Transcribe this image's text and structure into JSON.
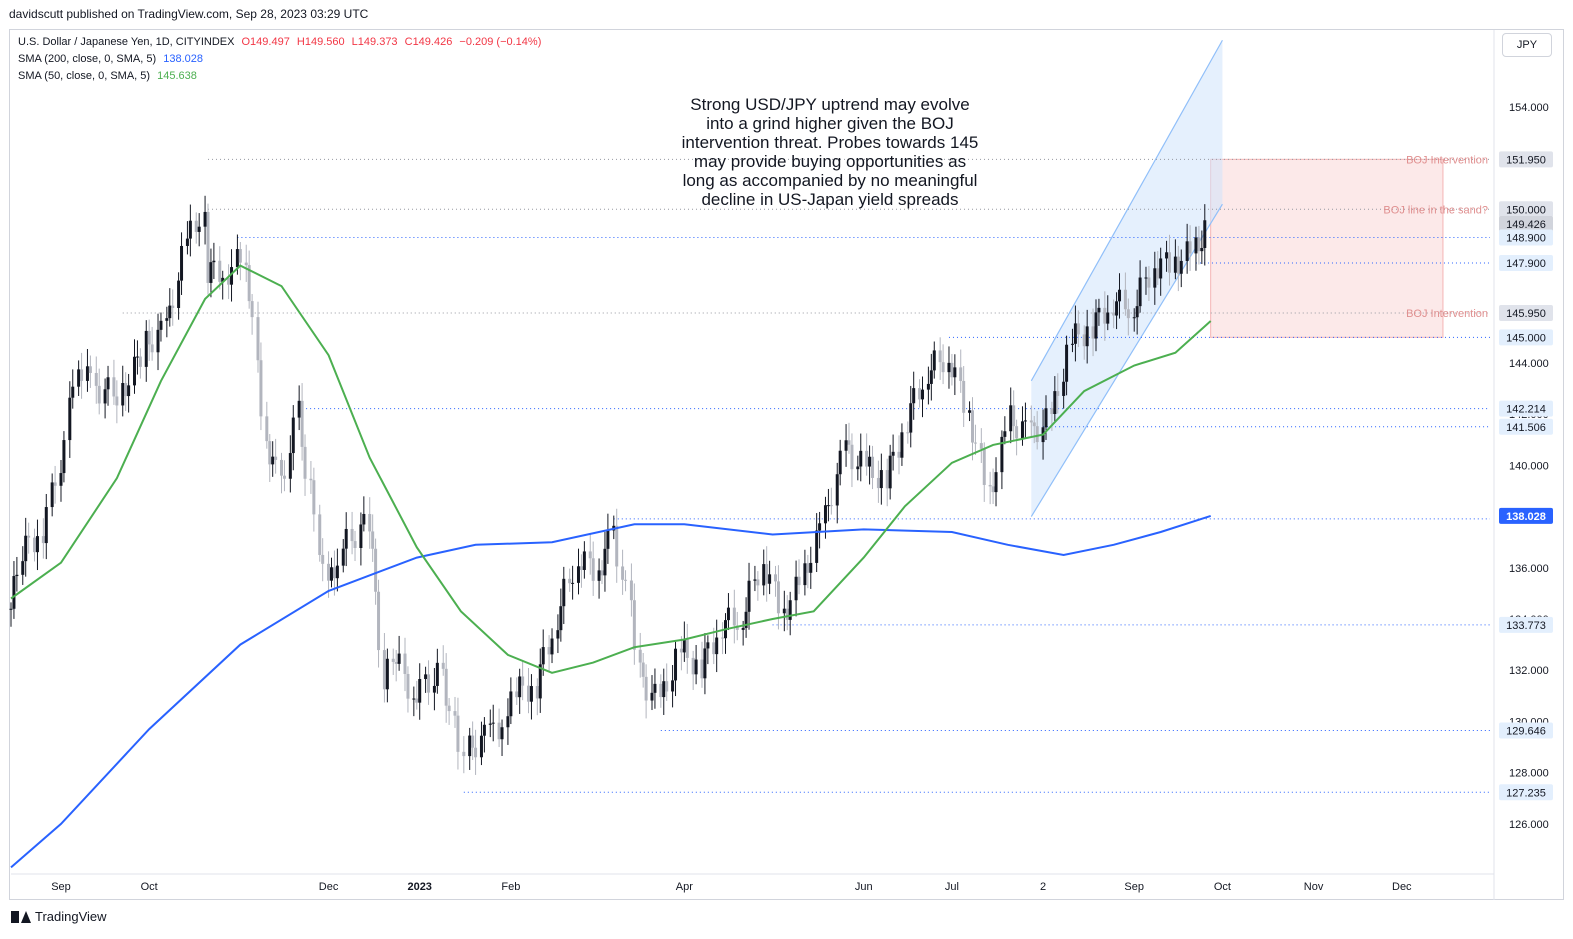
{
  "header": {
    "published": "davidscutt published on TradingView.com, Sep 28, 2023 03:29 UTC"
  },
  "legend": {
    "symbol": "U.S. Dollar / Japanese Yen, 1D, CITYINDEX",
    "open": "O149.497",
    "high": "H149.560",
    "low": "L149.373",
    "close": "C149.426",
    "change": "−0.209 (−0.14%)",
    "sma200_label": "SMA (200, close, 0, SMA, 5)",
    "sma200_value": "138.028",
    "sma50_label": "SMA (50, close, 0, SMA, 5)",
    "sma50_value": "145.638"
  },
  "currency_button": "JPY",
  "annotation": {
    "lines": [
      "Strong USD/JPY uptrend may evolve",
      "into a grind higher given the BOJ",
      "intervention threat. Probes towards 145",
      "may provide buying opportunities as",
      "long as accompanied by no meaningful",
      "decline in US-Japan yield spreads"
    ]
  },
  "footer": {
    "brand": "TradingView"
  },
  "colors": {
    "up": "#131722",
    "down": "#b2b5be",
    "sma200": "#2962ff",
    "sma50": "#4caf50",
    "level_line": "#2962ff",
    "channel": "#90bff9",
    "boj_zone": "#fbe0e0"
  },
  "chart_data": {
    "type": "candlestick",
    "title": "U.S. Dollar / Japanese Yen, 1D, CITYINDEX",
    "ylim": [
      124.2,
      157.0
    ],
    "xlim": [
      "2022-08-15",
      "2023-12-31"
    ],
    "y_ticks": [
      126,
      128,
      130,
      132,
      134,
      136,
      138,
      140,
      142,
      144,
      146,
      148,
      150,
      152,
      154
    ],
    "y_tick_labels": [
      "126.000",
      "128.000",
      "130.000",
      "132.000",
      "134.000",
      "136.000",
      "138.000",
      "140.000",
      "142.000",
      "144.000",
      "",
      "",
      "",
      "",
      "154.000"
    ],
    "x_ticks": [
      {
        "date": "2022-09-01",
        "label": "Sep"
      },
      {
        "date": "2022-10-01",
        "label": "Oct"
      },
      {
        "date": "2022-12-01",
        "label": "Dec"
      },
      {
        "date": "2023-01-01",
        "label": "2023",
        "bold": true
      },
      {
        "date": "2023-02-01",
        "label": "Feb"
      },
      {
        "date": "2023-04-01",
        "label": "Apr"
      },
      {
        "date": "2023-06-01",
        "label": "Jun"
      },
      {
        "date": "2023-07-01",
        "label": "Jul"
      },
      {
        "date": "2023-08-01",
        "label": "2"
      },
      {
        "date": "2023-09-01",
        "label": "Sep"
      },
      {
        "date": "2023-10-01",
        "label": "Oct"
      },
      {
        "date": "2023-11-01",
        "label": "Nov"
      },
      {
        "date": "2023-12-01",
        "label": "Dec"
      }
    ],
    "close_series": [
      [
        "2022-08-15",
        134.4
      ],
      [
        "2022-08-19",
        136.6
      ],
      [
        "2022-08-26",
        137.5
      ],
      [
        "2022-09-01",
        140.2
      ],
      [
        "2022-09-07",
        144.0
      ],
      [
        "2022-09-13",
        143.0
      ],
      [
        "2022-09-22",
        142.8
      ],
      [
        "2022-09-30",
        144.7
      ],
      [
        "2022-10-07",
        145.3
      ],
      [
        "2022-10-14",
        148.7
      ],
      [
        "2022-10-20",
        150.1
      ],
      [
        "2022-10-21",
        147.6
      ],
      [
        "2022-10-28",
        147.6
      ],
      [
        "2022-11-03",
        148.2
      ],
      [
        "2022-11-10",
        141.0
      ],
      [
        "2022-11-15",
        139.3
      ],
      [
        "2022-11-21",
        142.0
      ],
      [
        "2022-11-25",
        138.9
      ],
      [
        "2022-12-01",
        135.2
      ],
      [
        "2022-12-06",
        136.8
      ],
      [
        "2022-12-15",
        137.8
      ],
      [
        "2022-12-20",
        131.8
      ],
      [
        "2022-12-23",
        132.8
      ],
      [
        "2022-12-30",
        131.1
      ],
      [
        "2023-01-09",
        131.9
      ],
      [
        "2023-01-16",
        128.2
      ],
      [
        "2023-01-18",
        128.9
      ],
      [
        "2023-01-25",
        129.5
      ],
      [
        "2023-01-31",
        130.1
      ],
      [
        "2023-02-03",
        131.2
      ],
      [
        "2023-02-10",
        131.4
      ],
      [
        "2023-02-17",
        134.1
      ],
      [
        "2023-02-24",
        136.4
      ],
      [
        "2023-03-03",
        135.9
      ],
      [
        "2023-03-08",
        137.3
      ],
      [
        "2023-03-14",
        134.2
      ],
      [
        "2023-03-17",
        131.8
      ],
      [
        "2023-03-24",
        130.7
      ],
      [
        "2023-03-31",
        132.8
      ],
      [
        "2023-04-07",
        132.1
      ],
      [
        "2023-04-14",
        133.8
      ],
      [
        "2023-04-21",
        134.1
      ],
      [
        "2023-04-28",
        136.3
      ],
      [
        "2023-05-05",
        134.2
      ],
      [
        "2023-05-12",
        135.7
      ],
      [
        "2023-05-19",
        137.9
      ],
      [
        "2023-05-26",
        140.6
      ],
      [
        "2023-06-02",
        139.9
      ],
      [
        "2023-06-09",
        139.4
      ],
      [
        "2023-06-16",
        141.8
      ],
      [
        "2023-06-23",
        143.7
      ],
      [
        "2023-06-30",
        144.3
      ],
      [
        "2023-07-07",
        142.1
      ],
      [
        "2023-07-14",
        138.8
      ],
      [
        "2023-07-21",
        141.8
      ],
      [
        "2023-07-28",
        141.2
      ],
      [
        "2023-08-04",
        141.8
      ],
      [
        "2023-08-11",
        144.9
      ],
      [
        "2023-08-18",
        145.4
      ],
      [
        "2023-08-25",
        146.4
      ],
      [
        "2023-09-01",
        146.2
      ],
      [
        "2023-09-08",
        147.8
      ],
      [
        "2023-09-15",
        147.9
      ],
      [
        "2023-09-22",
        148.4
      ],
      [
        "2023-09-27",
        149.426
      ]
    ],
    "sma50": [
      [
        "2022-08-15",
        134.8
      ],
      [
        "2022-09-01",
        136.2
      ],
      [
        "2022-09-20",
        139.5
      ],
      [
        "2022-10-05",
        143.3
      ],
      [
        "2022-10-20",
        146.5
      ],
      [
        "2022-11-01",
        147.8
      ],
      [
        "2022-11-15",
        147.0
      ],
      [
        "2022-12-01",
        144.3
      ],
      [
        "2022-12-15",
        140.3
      ],
      [
        "2022-12-31",
        136.8
      ],
      [
        "2023-01-15",
        134.3
      ],
      [
        "2023-01-31",
        132.6
      ],
      [
        "2023-02-15",
        131.9
      ],
      [
        "2023-03-01",
        132.3
      ],
      [
        "2023-03-15",
        132.9
      ],
      [
        "2023-04-01",
        133.2
      ],
      [
        "2023-04-15",
        133.6
      ],
      [
        "2023-05-01",
        134.0
      ],
      [
        "2023-05-15",
        134.3
      ],
      [
        "2023-06-01",
        136.4
      ],
      [
        "2023-06-15",
        138.4
      ],
      [
        "2023-07-01",
        140.1
      ],
      [
        "2023-07-15",
        140.8
      ],
      [
        "2023-08-01",
        141.2
      ],
      [
        "2023-08-15",
        142.9
      ],
      [
        "2023-09-01",
        143.9
      ],
      [
        "2023-09-15",
        144.4
      ],
      [
        "2023-09-27",
        145.638
      ]
    ],
    "sma200": [
      [
        "2022-08-15",
        124.3
      ],
      [
        "2022-09-01",
        126.0
      ],
      [
        "2022-10-01",
        129.7
      ],
      [
        "2022-11-01",
        133.0
      ],
      [
        "2022-12-01",
        135.1
      ],
      [
        "2022-12-31",
        136.4
      ],
      [
        "2023-01-20",
        136.9
      ],
      [
        "2023-02-15",
        137.0
      ],
      [
        "2023-03-15",
        137.7
      ],
      [
        "2023-04-01",
        137.7
      ],
      [
        "2023-05-01",
        137.3
      ],
      [
        "2023-06-01",
        137.5
      ],
      [
        "2023-07-01",
        137.4
      ],
      [
        "2023-07-20",
        136.9
      ],
      [
        "2023-08-08",
        136.5
      ],
      [
        "2023-08-25",
        136.9
      ],
      [
        "2023-09-10",
        137.4
      ],
      [
        "2023-09-27",
        138.028
      ]
    ],
    "levels": [
      {
        "value": 151.95,
        "label": "151.950",
        "style": "gray",
        "start": "2022-10-21",
        "note": "BOJ Intervention"
      },
      {
        "value": 150.0,
        "label": "150.000",
        "style": "gray",
        "start": "2022-10-21",
        "note": "BOJ line in the sand?"
      },
      {
        "value": 149.426,
        "label": "149.426",
        "style": "price"
      },
      {
        "value": 148.9,
        "label": "148.900",
        "style": "blue",
        "start": "2022-10-31"
      },
      {
        "value": 147.9,
        "label": "147.900",
        "style": "blue",
        "start": "2023-09-22"
      },
      {
        "value": 145.95,
        "label": "145.950",
        "style": "gray",
        "start": "2022-09-22",
        "note": "BOJ Intervention"
      },
      {
        "value": 145.0,
        "label": "145.000",
        "style": "blue",
        "start": "2023-06-30"
      },
      {
        "value": 142.214,
        "label": "142.214",
        "style": "blue",
        "start": "2022-11-22"
      },
      {
        "value": 141.506,
        "label": "141.506",
        "style": "blue",
        "start": "2023-08-01"
      },
      {
        "value": 138.028,
        "label": "138.028",
        "style": "sma200"
      },
      {
        "value": 137.91,
        "label": "",
        "style": "blue",
        "start": "2023-03-08"
      },
      {
        "value": 133.773,
        "label": "133.773",
        "style": "blue",
        "start": "2023-05-01"
      },
      {
        "value": 129.646,
        "label": "129.646",
        "style": "blue",
        "start": "2023-03-24"
      },
      {
        "value": 127.235,
        "label": "127.235",
        "style": "blue",
        "start": "2023-01-16"
      }
    ],
    "channel": {
      "upper_start": [
        "2023-07-28",
        143.3
      ],
      "upper_end": [
        "2023-10-01",
        156.6
      ],
      "lower_start": [
        "2023-07-28",
        138.0
      ],
      "lower_end": [
        "2023-10-01",
        150.2
      ]
    },
    "boj_zone": {
      "from": "2023-09-27",
      "to": "2023-12-15",
      "low": 145.0,
      "high": 151.95
    },
    "grid": false,
    "legend_position": "top-left"
  }
}
